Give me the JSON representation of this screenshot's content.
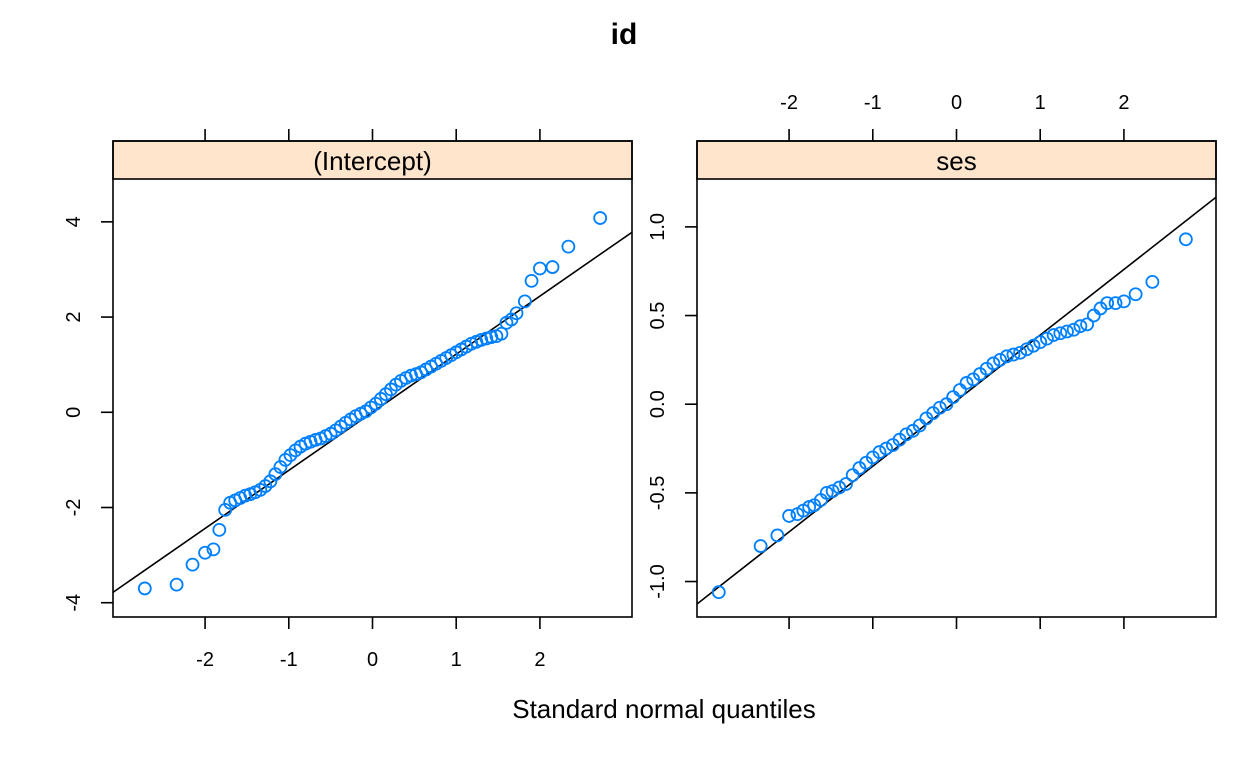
{
  "title": "id",
  "xlabel": "Standard normal quantiles",
  "colors": {
    "points": "#0080FF",
    "strip": "#FFE5CC",
    "line": "#000000"
  },
  "chart_data": [
    {
      "type": "scatter",
      "panel": "(Intercept)",
      "xlim": [
        -3.1,
        3.1
      ],
      "ylim": [
        -4.3,
        4.9
      ],
      "xticks": [
        -2,
        -1,
        0,
        1,
        2
      ],
      "xtick_labels": [
        "-2",
        "-1",
        "0",
        "1",
        "2"
      ],
      "yticks": [
        -4,
        -2,
        0,
        2,
        4
      ],
      "ytick_labels": [
        "-4",
        "-2",
        "0",
        "2",
        "4"
      ],
      "tick_labels_x": "bottom",
      "tick_labels_y": "left",
      "grid": false,
      "reference_line": {
        "intercept": 0.0,
        "slope": 1.22
      },
      "series": [
        {
          "x": [
            -2.72,
            -2.34,
            -2.15,
            -2.0,
            -1.9,
            -1.83,
            -1.76,
            -1.7,
            -1.64,
            -1.58,
            -1.52,
            -1.46,
            -1.4,
            -1.34,
            -1.28,
            -1.22,
            -1.16,
            -1.1,
            -1.04,
            -0.98,
            -0.92,
            -0.86,
            -0.8,
            -0.74,
            -0.68,
            -0.62,
            -0.56,
            -0.5,
            -0.44,
            -0.38,
            -0.32,
            -0.26,
            -0.2,
            -0.14,
            -0.08,
            -0.02,
            0.04,
            0.1,
            0.16,
            0.22,
            0.28,
            0.34,
            0.4,
            0.46,
            0.52,
            0.58,
            0.64,
            0.7,
            0.76,
            0.82,
            0.88,
            0.94,
            1.0,
            1.06,
            1.12,
            1.18,
            1.24,
            1.3,
            1.36,
            1.42,
            1.48,
            1.54,
            1.6,
            1.66,
            1.72,
            1.82,
            1.9,
            2.0,
            2.15,
            2.34,
            2.72
          ],
          "y": [
            -3.7,
            -3.62,
            -3.2,
            -2.95,
            -2.88,
            -2.47,
            -2.05,
            -1.9,
            -1.85,
            -1.8,
            -1.75,
            -1.72,
            -1.68,
            -1.63,
            -1.55,
            -1.45,
            -1.3,
            -1.15,
            -1.0,
            -0.9,
            -0.8,
            -0.72,
            -0.66,
            -0.62,
            -0.58,
            -0.55,
            -0.5,
            -0.45,
            -0.38,
            -0.3,
            -0.22,
            -0.15,
            -0.08,
            -0.03,
            0.02,
            0.1,
            0.18,
            0.28,
            0.38,
            0.48,
            0.58,
            0.66,
            0.72,
            0.77,
            0.8,
            0.84,
            0.9,
            0.96,
            1.02,
            1.08,
            1.14,
            1.2,
            1.26,
            1.32,
            1.38,
            1.44,
            1.48,
            1.52,
            1.55,
            1.58,
            1.6,
            1.65,
            1.88,
            1.95,
            2.08,
            2.33,
            2.76,
            3.02,
            3.05,
            3.48,
            4.08
          ]
        }
      ]
    },
    {
      "type": "scatter",
      "panel": "ses",
      "xlim": [
        -3.1,
        3.1
      ],
      "ylim": [
        -1.2,
        1.27
      ],
      "xticks": [
        -2,
        -1,
        0,
        1,
        2
      ],
      "xtick_labels": [
        "-2",
        "-1",
        "0",
        "1",
        "2"
      ],
      "yticks": [
        -1.0,
        -0.5,
        0.0,
        0.5,
        1.0
      ],
      "ytick_labels": [
        "-1.0",
        "-0.5",
        "0.0",
        "0.5",
        "1.0"
      ],
      "tick_labels_x": "top",
      "tick_labels_y": "left",
      "grid": false,
      "reference_line": {
        "intercept": 0.02,
        "slope": 0.37
      },
      "series": [
        {
          "x": [
            -2.84,
            -2.34,
            -2.14,
            -2.0,
            -1.9,
            -1.83,
            -1.76,
            -1.7,
            -1.62,
            -1.55,
            -1.48,
            -1.4,
            -1.32,
            -1.24,
            -1.16,
            -1.08,
            -1.0,
            -0.92,
            -0.84,
            -0.76,
            -0.68,
            -0.6,
            -0.52,
            -0.44,
            -0.36,
            -0.28,
            -0.2,
            -0.12,
            -0.04,
            0.04,
            0.12,
            0.2,
            0.28,
            0.36,
            0.44,
            0.52,
            0.6,
            0.68,
            0.76,
            0.84,
            0.92,
            1.0,
            1.08,
            1.16,
            1.24,
            1.32,
            1.4,
            1.48,
            1.56,
            1.64,
            1.72,
            1.8,
            1.9,
            2.0,
            2.14,
            2.34,
            2.74
          ],
          "y": [
            -1.06,
            -0.8,
            -0.74,
            -0.63,
            -0.62,
            -0.6,
            -0.58,
            -0.57,
            -0.54,
            -0.5,
            -0.49,
            -0.47,
            -0.45,
            -0.4,
            -0.36,
            -0.33,
            -0.3,
            -0.27,
            -0.25,
            -0.23,
            -0.2,
            -0.17,
            -0.15,
            -0.12,
            -0.08,
            -0.05,
            -0.02,
            0.0,
            0.04,
            0.08,
            0.12,
            0.14,
            0.17,
            0.2,
            0.23,
            0.25,
            0.27,
            0.28,
            0.29,
            0.31,
            0.33,
            0.35,
            0.37,
            0.39,
            0.4,
            0.41,
            0.42,
            0.44,
            0.45,
            0.5,
            0.54,
            0.57,
            0.57,
            0.58,
            0.62,
            0.69,
            0.93
          ]
        }
      ]
    }
  ]
}
